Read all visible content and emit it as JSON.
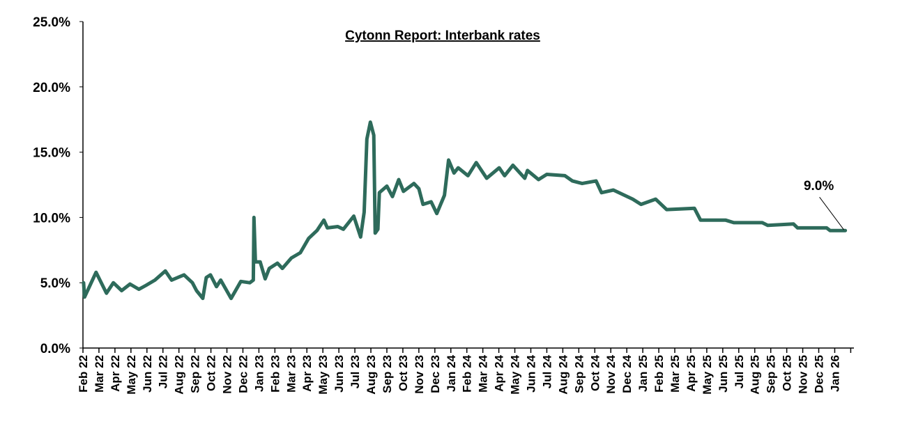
{
  "chart_data": {
    "type": "line",
    "title": "Cytonn Report: Interbank rates",
    "xlabel": "",
    "ylabel": "",
    "ylim": [
      0,
      25
    ],
    "y_ticks": [
      "0.0%",
      "5.0%",
      "10.0%",
      "15.0%",
      "20.0%",
      "25.0%"
    ],
    "y_tick_values": [
      0,
      5,
      10,
      15,
      20,
      25
    ],
    "x_index_note": "x = months since Feb 22",
    "xlim": [
      0,
      48.2
    ],
    "x_tick_labels": [
      "Feb 22",
      "Mar 22",
      "Apr 22",
      "May 22",
      "Jun 22",
      "Jul 22",
      "Aug 22",
      "Sep 22",
      "Oct 22",
      "Nov 22",
      "Dec 22",
      "Jan 23",
      "Feb 23",
      "Mar 23",
      "Apr 23",
      "May 23",
      "Jun 23",
      "Jul 23",
      "Aug 23",
      "Sep 23",
      "Oct 23",
      "Nov 23",
      "Dec 23",
      "Jan 24",
      "Feb 24",
      "Mar 24",
      "Apr 24",
      "May 24",
      "Jun 24",
      "Jul 24",
      "Aug 24",
      "Sep 24",
      "Oct 24",
      "Nov 24",
      "Dec 24",
      "Jan 25",
      "Feb 25",
      "Mar 25",
      "Apr 25",
      "May 25",
      "Jun 25",
      "Jul 25",
      "Aug 25",
      "Sep 25",
      "Oct 25",
      "Nov 25",
      "Dec 25",
      "Jan 26"
    ],
    "grid": false,
    "series": [
      {
        "name": "Interbank rate",
        "color": "#2E6B5B",
        "x": [
          0.04,
          0.1,
          0.82,
          1.47,
          1.9,
          2.42,
          2.94,
          3.5,
          3.94,
          4.5,
          5.15,
          5.54,
          6.32,
          6.84,
          7.1,
          7.49,
          7.71,
          7.97,
          8.35,
          8.61,
          9.26,
          9.87,
          10.43,
          10.65,
          10.69,
          10.78,
          11.08,
          11.39,
          11.65,
          12.16,
          12.47,
          13.03,
          13.59,
          14.11,
          14.63,
          15.06,
          15.28,
          15.93,
          16.28,
          16.93,
          17.36,
          17.58,
          17.75,
          17.97,
          18.18,
          18.27,
          18.44,
          18.53,
          19.0,
          19.35,
          19.74,
          20.04,
          20.69,
          21.0,
          21.26,
          21.77,
          22.12,
          22.6,
          22.86,
          23.2,
          23.46,
          24.07,
          24.59,
          25.24,
          26.02,
          26.36,
          26.88,
          27.62,
          27.79,
          28.48,
          29.0,
          30.13,
          30.6,
          31.21,
          32.08,
          32.42,
          33.16,
          33.68,
          34.37,
          34.89,
          35.8,
          36.49,
          38.23,
          38.61,
          40.17,
          40.69,
          42.47,
          42.81,
          44.42,
          44.68,
          46.49,
          46.71,
          47.66
        ],
        "values": [
          5.0,
          3.9,
          5.8,
          4.2,
          5.0,
          4.4,
          4.9,
          4.5,
          4.8,
          5.2,
          5.9,
          5.2,
          5.6,
          5.0,
          4.4,
          3.8,
          5.4,
          5.6,
          4.7,
          5.2,
          3.8,
          5.1,
          5.0,
          5.2,
          10.0,
          6.6,
          6.6,
          5.3,
          6.1,
          6.5,
          6.1,
          6.9,
          7.3,
          8.4,
          9.0,
          9.8,
          9.2,
          9.3,
          9.1,
          10.1,
          8.5,
          10.4,
          16.0,
          17.3,
          16.3,
          8.8,
          9.1,
          11.9,
          12.4,
          11.6,
          12.9,
          12.0,
          12.6,
          12.2,
          11.0,
          11.2,
          10.3,
          11.7,
          14.4,
          13.4,
          13.8,
          13.2,
          14.2,
          13.0,
          13.8,
          13.2,
          14.0,
          13.0,
          13.6,
          12.9,
          13.3,
          13.2,
          12.8,
          12.6,
          12.8,
          11.9,
          12.1,
          11.8,
          11.4,
          11.0,
          11.4,
          10.6,
          10.7,
          9.8,
          9.8,
          9.6,
          9.6,
          9.4,
          9.5,
          9.2,
          9.2,
          9.0,
          9.0
        ]
      }
    ],
    "annotations": [
      {
        "text": "9.0%",
        "x": 47.66,
        "value": 9.0
      }
    ]
  }
}
